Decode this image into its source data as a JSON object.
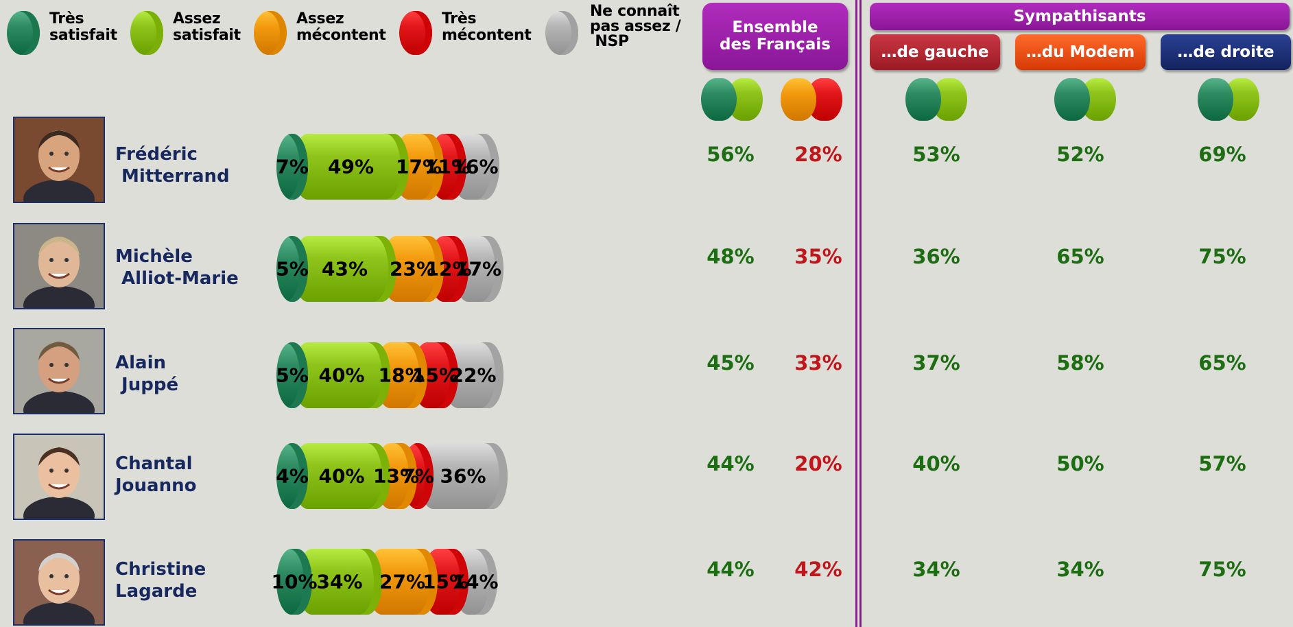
{
  "colors": {
    "tres_satisfait": "#2e8b62",
    "assez_satisfait": "#8ec41a",
    "assez_mecontent": "#f39a0e",
    "tres_mecontent": "#e2171a",
    "nsp": "#b5b5b5",
    "header_purple": "#9a1ba6",
    "header_gauche": "#b3222d",
    "header_modem": "#ee4a10",
    "header_droite": "#1b2f78",
    "positive_text": "#1d6e12",
    "negative_text": "#c0171d"
  },
  "legend": [
    {
      "label": "Très\nsatisfait",
      "color_key": "tres_satisfait"
    },
    {
      "label": "Assez\nsatisfait",
      "color_key": "assez_satisfait"
    },
    {
      "label": "Assez\nmécontent",
      "color_key": "assez_mecontent"
    },
    {
      "label": "Très\nmécontent",
      "color_key": "tres_mecontent"
    },
    {
      "label": "Ne connaît\npas assez /\n NSP",
      "color_key": "nsp"
    }
  ],
  "headers": {
    "ensemble": "Ensemble des Français",
    "sympathisants": "Sympathisants",
    "gauche": "…de gauche",
    "modem": "…du Modem",
    "droite": "…de droite"
  },
  "chart_data": {
    "type": "bar",
    "stacked": true,
    "orientation": "horizontal",
    "categories": [
      "Frédéric\n Mitterrand",
      "Michèle\n Alliot-Marie",
      "Alain\n Juppé",
      "Chantal\nJouanno",
      "Christine\nLagarde"
    ],
    "series": [
      {
        "name": "Très satisfait",
        "values": [
          7,
          5,
          5,
          4,
          10
        ]
      },
      {
        "name": "Assez satisfait",
        "values": [
          49,
          43,
          40,
          40,
          34
        ]
      },
      {
        "name": "Assez mécontent",
        "values": [
          17,
          23,
          18,
          13,
          27
        ]
      },
      {
        "name": "Très mécontent",
        "values": [
          11,
          12,
          15,
          7,
          15
        ]
      },
      {
        "name": "Ne connaît pas assez / NSP",
        "values": [
          16,
          17,
          22,
          36,
          14
        ]
      }
    ],
    "value_suffix": "%"
  },
  "table": {
    "columns": [
      "ensemble_satisfaits",
      "ensemble_mecontents",
      "gauche_satisfaits",
      "modem_satisfaits",
      "droite_satisfaits"
    ],
    "rows": [
      [
        "56%",
        "28%",
        "53%",
        "52%",
        "69%"
      ],
      [
        "48%",
        "35%",
        "36%",
        "65%",
        "75%"
      ],
      [
        "45%",
        "33%",
        "37%",
        "58%",
        "65%"
      ],
      [
        "44%",
        "20%",
        "40%",
        "50%",
        "57%"
      ],
      [
        "44%",
        "42%",
        "34%",
        "34%",
        "75%"
      ]
    ]
  }
}
